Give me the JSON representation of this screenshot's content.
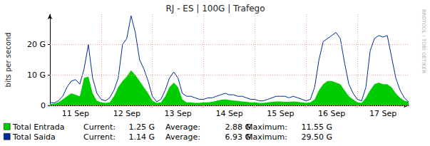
{
  "chart_data": {
    "type": "line",
    "title": "RJ - ES | 100G | Trafego",
    "ylabel": "bits per second",
    "annotations": [
      "RRDTOOL / TOBI OETIKER"
    ],
    "categories": [
      null,
      null,
      null,
      null,
      null,
      null,
      "11 Sep",
      null,
      null,
      null,
      null,
      null,
      null,
      null,
      null,
      null,
      null,
      null,
      "12 Sep",
      null,
      null,
      null,
      null,
      null,
      null,
      null,
      null,
      null,
      null,
      null,
      "13 Sep",
      null,
      null,
      null,
      null,
      null,
      null,
      null,
      null,
      null,
      null,
      null,
      "14 Sep",
      null,
      null,
      null,
      null,
      null,
      null,
      null,
      null,
      null,
      null,
      null,
      "15 Sep",
      null,
      null,
      null,
      null,
      null,
      null,
      null,
      null,
      null,
      null,
      null,
      "16 Sep",
      null,
      null,
      null,
      null,
      null,
      null,
      null,
      null,
      null,
      null,
      null,
      "17 Sep",
      null,
      null,
      null,
      null,
      null,
      null
    ],
    "ylim": [
      0,
      30
    ],
    "yticks": [
      0,
      {
        "value": 10,
        "label": "10 G"
      },
      {
        "value": 20,
        "label": "20 G"
      }
    ],
    "grid": true,
    "stat_names": [
      "Current:",
      "Average:",
      "Maximum:"
    ],
    "series": [
      {
        "name": "Total Entrada",
        "type": "area",
        "color": "#00cc00",
        "stats": [
          {
            "value": 1.25,
            "label": "1.25 G"
          },
          {
            "value": 2.88,
            "label": "2.88 G"
          },
          {
            "value": 11.55,
            "label": "11.55 G"
          }
        ],
        "values": [
          0.5,
          0.5,
          1,
          2,
          3,
          4,
          3.5,
          3,
          9,
          9.5,
          4,
          1.5,
          1,
          0.8,
          1,
          3,
          6,
          8,
          9.5,
          11.55,
          10,
          8,
          6,
          4,
          1.5,
          0.8,
          1,
          3,
          6,
          7.5,
          6,
          2,
          1,
          1,
          0.8,
          0.8,
          1,
          1,
          1.2,
          1.5,
          1.8,
          2,
          1.8,
          1.6,
          1.5,
          1.3,
          1.2,
          1,
          1,
          0.8,
          0.8,
          1,
          1.2,
          1.3,
          1.3,
          1.2,
          1.2,
          1.3,
          1.2,
          1,
          0.8,
          1,
          2,
          5,
          7,
          8,
          8,
          7.5,
          7,
          5,
          3,
          2,
          1,
          0.8,
          2.5,
          5,
          7,
          7.5,
          7,
          7,
          6,
          4,
          2.5,
          1.5,
          1.25
        ]
      },
      {
        "name": "Total Saida",
        "type": "line",
        "color": "#002a97",
        "stats": [
          {
            "value": 1.14,
            "label": "1.14 G"
          },
          {
            "value": 6.93,
            "label": "6.93 G"
          },
          {
            "value": 29.5,
            "label": "29.50 G"
          }
        ],
        "values": [
          1.0,
          0.8,
          1.5,
          3,
          6,
          8,
          8.5,
          7,
          12,
          20,
          9,
          4,
          2,
          1.5,
          2.5,
          5,
          9,
          20,
          22,
          29.5,
          24,
          15,
          12,
          8,
          3,
          1.2,
          2,
          5,
          9,
          11,
          9,
          4,
          3,
          3,
          2.5,
          2,
          2,
          2.5,
          2.5,
          3,
          3.5,
          4,
          3.5,
          3.5,
          3,
          3,
          2.5,
          2,
          2,
          1.5,
          1.5,
          2,
          2.5,
          3,
          3,
          3,
          2.5,
          3,
          2.5,
          2,
          1.5,
          2,
          6,
          15,
          21,
          22,
          23,
          24,
          22,
          14,
          7,
          4,
          2,
          1.5,
          6,
          18,
          22,
          23,
          22.5,
          23,
          16,
          9,
          5,
          2.5,
          1.14
        ]
      }
    ]
  }
}
